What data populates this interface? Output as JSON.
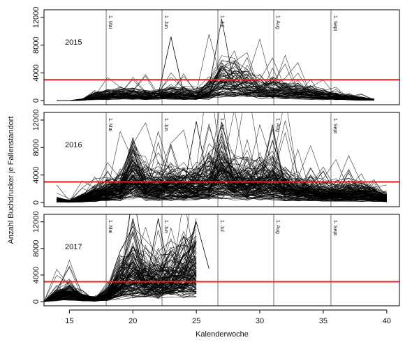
{
  "chart_data": {
    "type": "line",
    "xlabel": "Kalenderwoche",
    "ylabel": "Anzahl Buchdrucker je Fallenstandort",
    "xlim": [
      13,
      41
    ],
    "x_ticks": [
      15,
      20,
      25,
      30,
      35,
      40
    ],
    "y_ticks": [
      0,
      4000,
      8000,
      12000
    ],
    "threshold": {
      "value": 3000,
      "color": "#e8211e"
    },
    "month_markers": [
      {
        "week": 17.9,
        "label": "1. Mai"
      },
      {
        "week": 22.3,
        "label": "1. Jun"
      },
      {
        "week": 26.7,
        "label": "1. Jul"
      },
      {
        "week": 31.1,
        "label": "1. Aug"
      },
      {
        "week": 35.6,
        "label": "1. Sept"
      }
    ],
    "panels": [
      {
        "year": "2015",
        "ylim": [
          0,
          12500
        ],
        "week_start": 14,
        "week_end": 39,
        "mean_profile": [
          [
            14,
            0
          ],
          [
            15,
            0
          ],
          [
            16,
            100
          ],
          [
            17,
            500
          ],
          [
            18,
            650
          ],
          [
            19,
            800
          ],
          [
            20,
            700
          ],
          [
            21,
            600
          ],
          [
            22,
            650
          ],
          [
            23,
            900
          ],
          [
            24,
            800
          ],
          [
            25,
            700
          ],
          [
            26,
            1300
          ],
          [
            27,
            2300
          ],
          [
            28,
            2100
          ],
          [
            29,
            1900
          ],
          [
            30,
            1600
          ],
          [
            31,
            1400
          ],
          [
            32,
            1300
          ],
          [
            33,
            1100
          ],
          [
            34,
            900
          ],
          [
            35,
            700
          ],
          [
            36,
            500
          ],
          [
            37,
            350
          ],
          [
            38,
            200
          ],
          [
            39,
            100
          ]
        ],
        "highlights": [
          {
            "week": 23,
            "value": 9200
          },
          {
            "week": 27,
            "value": 5000
          },
          {
            "week": 28,
            "value": 4300
          }
        ]
      },
      {
        "year": "2016",
        "ylim": [
          0,
          12500
        ],
        "week_start": 14,
        "week_end": 40,
        "mean_profile": [
          [
            14,
            300
          ],
          [
            15,
            150
          ],
          [
            16,
            500
          ],
          [
            17,
            900
          ],
          [
            18,
            1400
          ],
          [
            19,
            1800
          ],
          [
            20,
            3300
          ],
          [
            21,
            2000
          ],
          [
            22,
            2000
          ],
          [
            23,
            2200
          ],
          [
            24,
            2100
          ],
          [
            25,
            2200
          ],
          [
            26,
            2600
          ],
          [
            27,
            3800
          ],
          [
            28,
            2600
          ],
          [
            29,
            2400
          ],
          [
            30,
            2500
          ],
          [
            31,
            2800
          ],
          [
            32,
            2000
          ],
          [
            33,
            1600
          ],
          [
            34,
            1400
          ],
          [
            35,
            1200
          ],
          [
            36,
            1100
          ],
          [
            37,
            1300
          ],
          [
            38,
            1200
          ],
          [
            39,
            900
          ],
          [
            40,
            600
          ]
        ],
        "highlights": [
          {
            "week": 20,
            "value": 9400
          },
          {
            "week": 25,
            "value": 11800
          },
          {
            "week": 27,
            "value": 11700
          },
          {
            "week": 31,
            "value": 9000
          }
        ]
      },
      {
        "year": "2017",
        "ylim": [
          0,
          12500
        ],
        "week_start": 13,
        "week_end": 25,
        "mean_profile": [
          [
            13,
            0
          ],
          [
            14,
            800
          ],
          [
            15,
            1200
          ],
          [
            16,
            500
          ],
          [
            17,
            300
          ],
          [
            18,
            800
          ],
          [
            19,
            2700
          ],
          [
            20,
            4000
          ],
          [
            21,
            3000
          ],
          [
            22,
            2700
          ],
          [
            23,
            3200
          ],
          [
            24,
            3800
          ],
          [
            25,
            4500
          ]
        ],
        "highlights": [
          {
            "week": 20,
            "value": 12500
          },
          {
            "week": 22,
            "value": 12500
          },
          {
            "week": 25,
            "value": 12000
          }
        ]
      }
    ]
  }
}
